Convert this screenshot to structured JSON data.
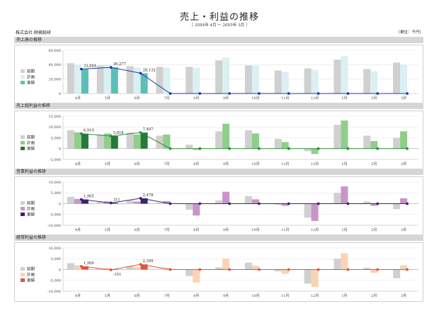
{
  "header": {
    "title": "売上・利益の推移",
    "subtitle": "［ 20X4年 4月 ～ 20X5年 3月 ］",
    "company": "株式会社 財務総研",
    "unit": "（単位：千円）"
  },
  "legend_labels": [
    "前期",
    "計画",
    "実績"
  ],
  "chart_data": [
    {
      "type": "bar",
      "title": "売上高の推移",
      "categories": [
        "4月",
        "5月",
        "6月",
        "7月",
        "8月",
        "9月",
        "10月",
        "11月",
        "12月",
        "1月",
        "2月",
        "3月"
      ],
      "ylim": [
        0,
        60000
      ],
      "yticks": [
        0,
        20000,
        40000,
        60000
      ],
      "ytick_labels": [
        "0",
        "20,000",
        "40,000",
        "60,000"
      ],
      "series": [
        {
          "name": "前期",
          "values": [
            42000,
            39000,
            38000,
            37000,
            37000,
            46000,
            39000,
            32000,
            35000,
            47000,
            34000,
            43000
          ]
        },
        {
          "name": "計画",
          "values": [
            40000,
            40000,
            36000,
            36000,
            36000,
            50000,
            39000,
            30000,
            33000,
            52000,
            31000,
            40000
          ]
        },
        {
          "name": "実績",
          "values": [
            33884,
            36277,
            28132,
            null,
            null,
            null,
            null,
            null,
            null,
            null,
            null,
            null
          ]
        }
      ],
      "line": [
        33884,
        36277,
        28132,
        0,
        0,
        0,
        0,
        0,
        0,
        0,
        0,
        0
      ],
      "labels": [
        "33,884",
        "36,277",
        "28,132"
      ],
      "colors": {
        "prev": "#d0d0d0",
        "plan": "#daf0f3",
        "actual": "#5bbfb8",
        "line": "#1f3f9c"
      }
    },
    {
      "type": "bar",
      "title": "売上総利益の推移",
      "categories": [
        "4月",
        "5月",
        "6月",
        "7月",
        "8月",
        "9月",
        "10月",
        "11月",
        "12月",
        "1月",
        "2月",
        "3月"
      ],
      "ylim": [
        -5000,
        15000
      ],
      "yticks": [
        -5000,
        0,
        5000,
        10000,
        15000
      ],
      "ytick_labels": [
        "-5,000",
        "0",
        "5,000",
        "10,000",
        "15,000"
      ],
      "series": [
        {
          "name": "前期",
          "values": [
            8500,
            6500,
            7500,
            6000,
            1800,
            8000,
            8500,
            4500,
            -1200,
            11000,
            6000,
            5000
          ]
        },
        {
          "name": "計画",
          "values": [
            7500,
            7000,
            6500,
            6500,
            -600,
            11500,
            7000,
            3000,
            -2500,
            13000,
            3500,
            8000
          ]
        },
        {
          "name": "実績",
          "values": [
            6910,
            5818,
            7407,
            null,
            null,
            null,
            null,
            null,
            null,
            null,
            null,
            null
          ]
        }
      ],
      "line": [
        6910,
        5818,
        7407,
        0,
        0,
        0,
        0,
        0,
        0,
        0,
        0,
        0
      ],
      "labels": [
        "6,910",
        "5,818",
        "7,407"
      ],
      "colors": {
        "prev": "#d0d0d0",
        "plan": "#8fce8b",
        "actual": "#247a3a",
        "line": "#2e8b3c"
      }
    },
    {
      "type": "bar",
      "title": "営業利益の推移",
      "categories": [
        "4月",
        "5月",
        "6月",
        "7月",
        "8月",
        "9月",
        "10月",
        "11月",
        "12月",
        "1月",
        "2月",
        "3月"
      ],
      "ylim": [
        -10000,
        10000
      ],
      "yticks": [
        -10000,
        -5000,
        0,
        5000,
        10000
      ],
      "ytick_labels": [
        "-10,000",
        "-5,000",
        "0",
        "5,000",
        "10,000"
      ],
      "series": [
        {
          "name": "前期",
          "values": [
            3200,
            800,
            1500,
            500,
            -2800,
            1500,
            3500,
            -500,
            -6500,
            5000,
            1000,
            -2500
          ]
        },
        {
          "name": "計画",
          "values": [
            2200,
            1000,
            1000,
            1200,
            -5500,
            5500,
            2000,
            -1000,
            -8000,
            8000,
            -1000,
            2500
          ]
        },
        {
          "name": "実績",
          "values": [
            1965,
            311,
            2478,
            null,
            null,
            null,
            null,
            null,
            null,
            null,
            null,
            null
          ]
        }
      ],
      "line": [
        1965,
        311,
        2478,
        0,
        0,
        0,
        0,
        0,
        0,
        0,
        0,
        0
      ],
      "labels": [
        "1,965",
        "311",
        "2,478"
      ],
      "colors": {
        "prev": "#d0d0d0",
        "plan": "#c994c8",
        "actual": "#3b2472",
        "line": "#3b2472"
      }
    },
    {
      "type": "bar",
      "title": "経常利益の推移",
      "categories": [
        "4月",
        "5月",
        "6月",
        "7月",
        "8月",
        "9月",
        "10月",
        "11月",
        "12月",
        "1月",
        "2月",
        "3月"
      ],
      "ylim": [
        -10000,
        10000
      ],
      "yticks": [
        -10000,
        -5000,
        0,
        5000,
        10000
      ],
      "ytick_labels": [
        "-10,000",
        "-5,000",
        "0",
        "5,000",
        "10,000"
      ],
      "series": [
        {
          "name": "前期",
          "values": [
            3000,
            500,
            1500,
            300,
            -3000,
            1000,
            3200,
            -800,
            -6500,
            5000,
            800,
            -4000
          ]
        },
        {
          "name": "計画",
          "values": [
            2000,
            800,
            1200,
            800,
            -6000,
            5000,
            1800,
            -2000,
            -8000,
            7500,
            -1500,
            2000
          ]
        },
        {
          "name": "実績",
          "values": [
            1500,
            -151,
            2399,
            null,
            null,
            null,
            null,
            null,
            null,
            null,
            null,
            null
          ]
        }
      ],
      "line": [
        1500,
        -151,
        2399,
        0,
        0,
        0,
        0,
        0,
        0,
        0,
        0,
        0
      ],
      "labels": [
        "1,500",
        "-151",
        "2,399"
      ],
      "colors": {
        "prev": "#d0d0d0",
        "plan": "#fbd2b2",
        "actual": "#e0553c",
        "line": "#e0553c"
      }
    }
  ]
}
